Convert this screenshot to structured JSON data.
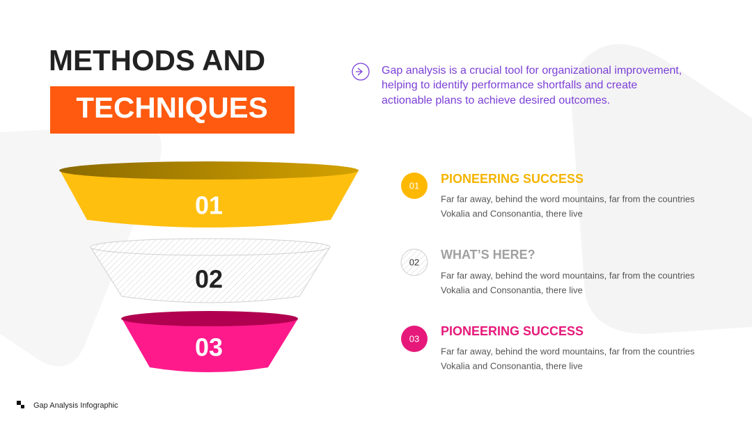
{
  "title": {
    "line1": "METHODS AND",
    "line2": "TECHNIQUES"
  },
  "intro": {
    "lines": [
      "Gap analysis is a crucial tool for organizational improvement,",
      "helping to identify performance shortfalls and create",
      "actionable plans to achieve desired outcomes."
    ]
  },
  "funnel": {
    "labels": [
      "01",
      "02",
      "03"
    ]
  },
  "items": [
    {
      "number": "01",
      "heading": "PIONEERING SUCCESS",
      "lines": [
        "Far far away, behind the word mountains, far from the countries",
        "Vokalia and Consonantia, there live"
      ]
    },
    {
      "number": "02",
      "heading": "WHAT’S HERE?",
      "lines": [
        "Far far away, behind the word mountains, far from the countries",
        "Vokalia and Consonantia, there live"
      ]
    },
    {
      "number": "03",
      "heading": "PIONEERING SUCCESS",
      "lines": [
        "Far far away, behind the word mountains, far from the countries",
        "Vokalia and Consonantia, there live"
      ]
    }
  ],
  "footer": "Gap Analysis Infographic"
}
